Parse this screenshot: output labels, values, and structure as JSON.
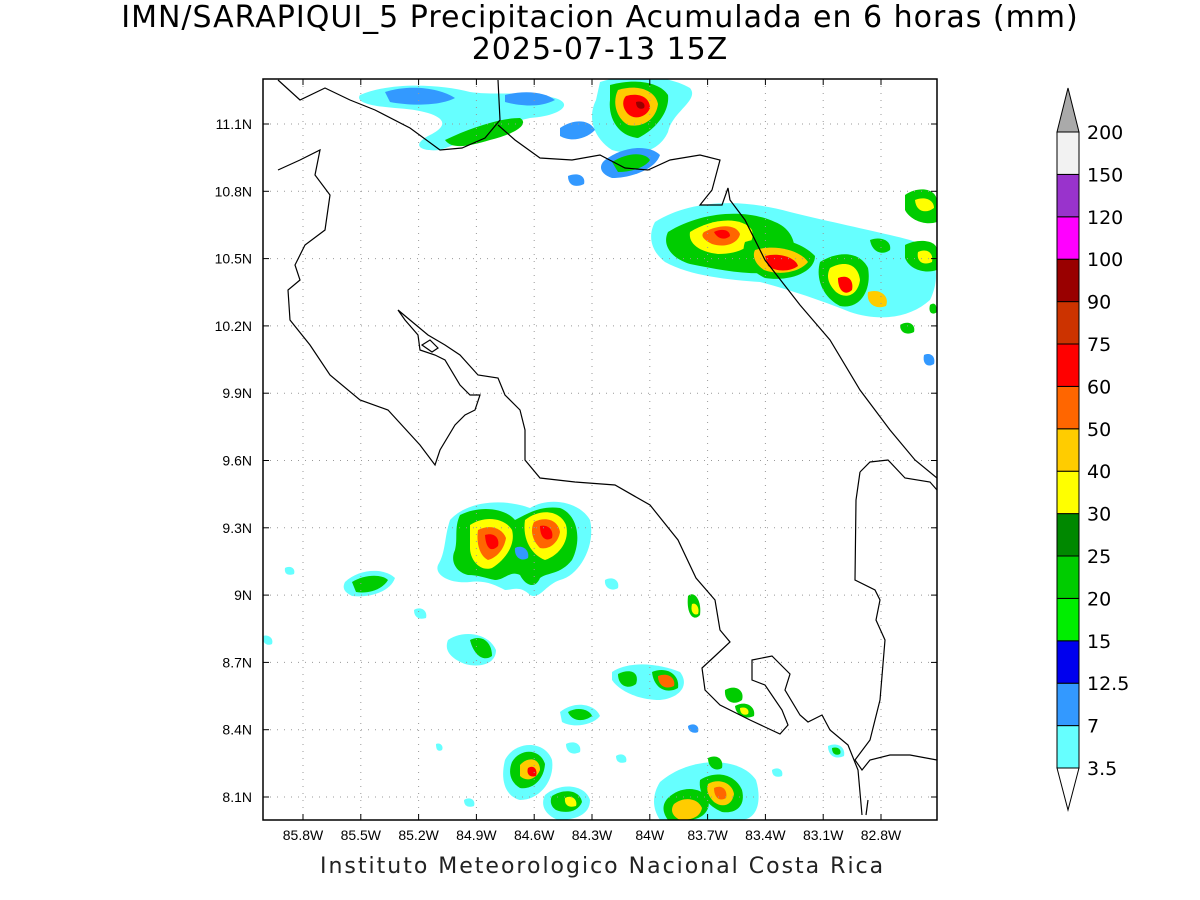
{
  "title_line1": "IMN/SARAPIQUI_5 Precipitacion Acumulada en 6 horas (mm)",
  "title_line2": "2025-07-13 15Z",
  "footer": "Instituto Meteorologico Nacional Costa Rica",
  "map": {
    "lon_labels": [
      "85.8W",
      "85.5W",
      "85.2W",
      "84.9W",
      "84.6W",
      "84.3W",
      "84W",
      "83.7W",
      "83.4W",
      "83.1W",
      "82.8W"
    ],
    "lat_labels": [
      "11.1N",
      "10.8N",
      "10.5N",
      "10.2N",
      "9.9N",
      "9.6N",
      "9.3N",
      "9N",
      "8.7N",
      "8.4N",
      "8.1N"
    ]
  },
  "colorbar": {
    "levels": [
      "3.5",
      "7",
      "12.5",
      "15",
      "20",
      "25",
      "30",
      "40",
      "50",
      "60",
      "75",
      "90",
      "100",
      "120",
      "150",
      "200"
    ],
    "colors": [
      "#66ffff",
      "#3399ff",
      "#0000ee",
      "#00ee00",
      "#00cc00",
      "#008800",
      "#ffff00",
      "#ffcc00",
      "#ff6600",
      "#ff0000",
      "#cc3300",
      "#990000",
      "#ff00ff",
      "#9933cc",
      "#f2f2f2",
      "#aaaaaa"
    ]
  },
  "chart_data": {
    "type": "heatmap",
    "variable": "Precipitacion Acumulada en 6 horas (mm)",
    "lon_range": [
      "85.8W",
      "82.8W"
    ],
    "lat_range": [
      "8.1N",
      "11.1N"
    ],
    "grid": true
  }
}
